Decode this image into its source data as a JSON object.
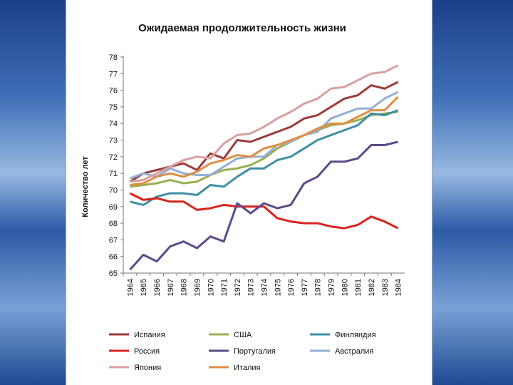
{
  "chart_data": {
    "type": "line",
    "title": "Ожидаемая продолжительность жизни",
    "ylabel": "Количество лет",
    "xlabel": "",
    "ylim": [
      65,
      78
    ],
    "yticks": [
      "65",
      "66",
      "67",
      "68",
      "69",
      "70",
      "71",
      "72",
      "73",
      "74",
      "75",
      "76",
      "77",
      "78"
    ],
    "categories": [
      "1964",
      "1965",
      "1966",
      "1967",
      "1968",
      "1969",
      "1970",
      "1971",
      "1972",
      "1973",
      "1974",
      "1975",
      "1976",
      "1977",
      "1978",
      "1979",
      "1980",
      "1981",
      "1982",
      "1983",
      "1984"
    ],
    "grid": false,
    "legend_position": "bottom",
    "series": [
      {
        "name": "Испания",
        "color": "#9c3b38",
        "values": [
          70.5,
          71.0,
          71.2,
          71.4,
          71.6,
          71.2,
          72.2,
          71.9,
          73.0,
          72.9,
          73.2,
          73.5,
          73.8,
          74.3,
          74.5,
          75.0,
          75.5,
          75.7,
          76.3,
          76.1,
          76.5
        ]
      },
      {
        "name": "США",
        "color": "#98b050",
        "values": [
          70.2,
          70.3,
          70.4,
          70.6,
          70.4,
          70.5,
          70.9,
          71.2,
          71.3,
          71.5,
          71.9,
          72.5,
          72.9,
          73.3,
          73.6,
          73.9,
          74.0,
          74.2,
          74.5,
          74.6,
          74.7
        ]
      },
      {
        "name": "Финляндия",
        "color": "#3f8fa5",
        "values": [
          69.3,
          69.1,
          69.6,
          69.8,
          69.8,
          69.7,
          70.3,
          70.2,
          70.8,
          71.3,
          71.3,
          71.8,
          72.0,
          72.5,
          73.0,
          73.3,
          73.6,
          73.9,
          74.6,
          74.5,
          74.8
        ]
      },
      {
        "name": "Россия",
        "color": "#d8241c",
        "values": [
          69.8,
          69.4,
          69.5,
          69.3,
          69.3,
          68.8,
          68.9,
          69.1,
          69.0,
          69.0,
          69.0,
          68.3,
          68.1,
          68.0,
          68.0,
          67.8,
          67.7,
          67.9,
          68.4,
          68.1,
          67.7
        ]
      },
      {
        "name": "Португалия",
        "color": "#5b4a8b",
        "values": [
          65.2,
          66.1,
          65.7,
          66.6,
          66.9,
          66.5,
          67.2,
          66.9,
          69.2,
          68.6,
          69.2,
          68.9,
          69.1,
          70.4,
          70.8,
          71.7,
          71.7,
          71.9,
          72.7,
          72.7,
          72.9
        ]
      },
      {
        "name": "Австралия",
        "color": "#93afd4",
        "values": [
          70.7,
          71.0,
          70.8,
          71.3,
          71.0,
          70.9,
          70.9,
          71.4,
          71.9,
          72.0,
          72.0,
          72.7,
          72.9,
          73.3,
          73.5,
          74.3,
          74.6,
          74.9,
          74.9,
          75.5,
          75.9
        ]
      },
      {
        "name": "Япония",
        "color": "#d9a0a0",
        "values": [
          70.5,
          70.6,
          71.0,
          71.4,
          71.8,
          72.0,
          71.9,
          72.8,
          73.3,
          73.4,
          73.8,
          74.3,
          74.7,
          75.2,
          75.5,
          76.1,
          76.2,
          76.6,
          77.0,
          77.1,
          77.5
        ]
      },
      {
        "name": "Италия",
        "color": "#e08e45",
        "values": [
          70.3,
          70.4,
          70.8,
          71.0,
          70.8,
          71.1,
          71.6,
          71.8,
          72.1,
          72.0,
          72.5,
          72.7,
          73.0,
          73.3,
          73.7,
          74.0,
          74.0,
          74.4,
          74.8,
          74.8,
          75.6
        ]
      }
    ]
  }
}
